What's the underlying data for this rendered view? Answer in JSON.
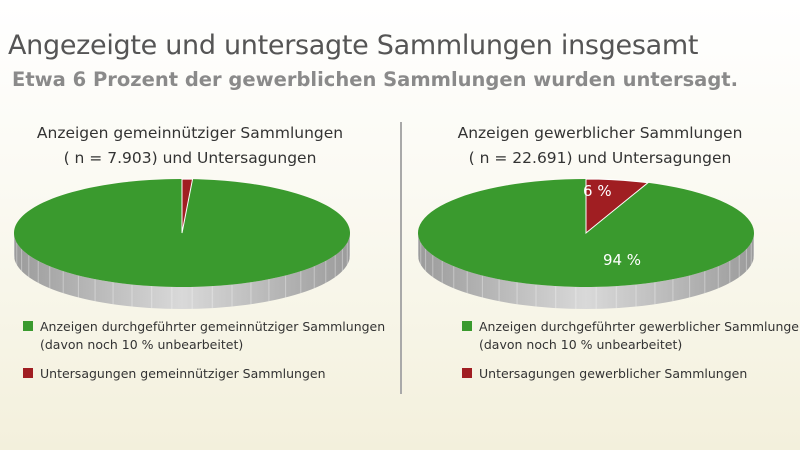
{
  "title": "Angezeigte und untersagte Sammlungen insgesamt",
  "subtitle": "Etwa 6 Prozent der gewerblichen Sammlungen wurden untersagt.",
  "colors": {
    "green": "#3a9a2e",
    "red": "#a01e22",
    "rim": "#c8c8c8"
  },
  "chart_data": [
    {
      "type": "pie",
      "title_line1": "Anzeigen gemeinnütziger Sammlungen",
      "title_line2": "( n = 7.903) und Untersagungen",
      "slices": [
        {
          "name": "Anzeigen durchgeführter gemeinnütziger Sammlungen",
          "note": "(davon noch 10 % unbearbeitet)",
          "value": 99,
          "label": "",
          "color": "#3a9a2e"
        },
        {
          "name": "Untersagungen gemeinnütziger Sammlungen",
          "note": "",
          "value": 1,
          "label": "",
          "color": "#a01e22"
        }
      ]
    },
    {
      "type": "pie",
      "title_line1": "Anzeigen gewerblicher Sammlungen",
      "title_line2": "( n = 22.691) und Untersagungen",
      "slices": [
        {
          "name": "Anzeigen durchgeführter gewerblicher Sammlungen",
          "note": "(davon noch 10 % unbearbeitet)",
          "value": 94,
          "label": "94 %",
          "color": "#3a9a2e"
        },
        {
          "name": "Untersagungen gewerblicher Sammlungen",
          "note": "",
          "value": 6,
          "label": "6 %",
          "color": "#a01e22"
        }
      ]
    }
  ]
}
